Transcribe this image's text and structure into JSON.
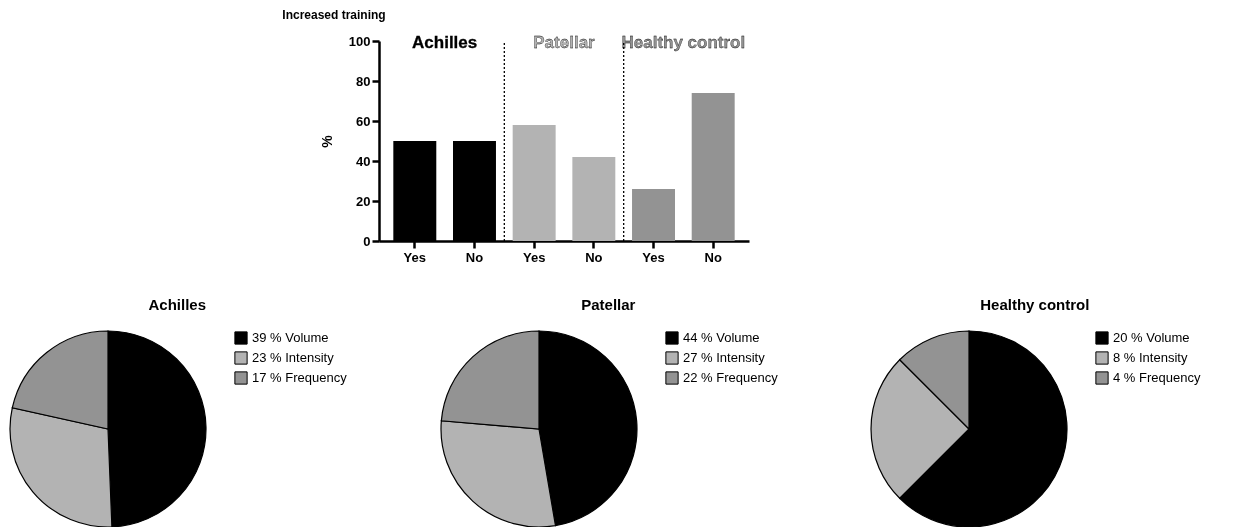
{
  "chart_data": [
    {
      "type": "bar",
      "title": "Increased training",
      "ylabel": "%",
      "categories": [
        "Yes",
        "No",
        "Yes",
        "No",
        "Yes",
        "No"
      ],
      "ylim": [
        0,
        100
      ],
      "yticks": [
        0,
        20,
        40,
        60,
        80,
        100
      ],
      "series": [
        {
          "name": "Achilles",
          "color": "#000000",
          "values": [
            50,
            50,
            null,
            null,
            null,
            null
          ]
        },
        {
          "name": "Patellar",
          "color": "#b3b3b3",
          "values": [
            null,
            null,
            58,
            42,
            null,
            null
          ]
        },
        {
          "name": "Healthy control",
          "color": "#939393",
          "values": [
            null,
            null,
            null,
            null,
            26,
            74
          ]
        }
      ]
    },
    {
      "type": "pie",
      "title": "Achilles",
      "categories": [
        "39 % Volume",
        "23 % Intensity",
        "17 % Frequency"
      ],
      "values": [
        39,
        23,
        17
      ],
      "colors": [
        "#000000",
        "#b3b3b3",
        "#939393"
      ],
      "legend": "right"
    },
    {
      "type": "pie",
      "title": "Patellar",
      "categories": [
        "44 % Volume",
        "27 % Intensity",
        "22 % Frequency"
      ],
      "values": [
        44,
        27,
        22
      ],
      "colors": [
        "#000000",
        "#b3b3b3",
        "#939393"
      ],
      "legend": "right"
    },
    {
      "type": "pie",
      "title": "Healthy control",
      "categories": [
        "20 % Volume",
        "8 % Intensity",
        "4 % Frequency"
      ],
      "values": [
        20,
        8,
        4
      ],
      "colors": [
        "#000000",
        "#b3b3b3",
        "#939393"
      ],
      "legend": "right"
    }
  ]
}
